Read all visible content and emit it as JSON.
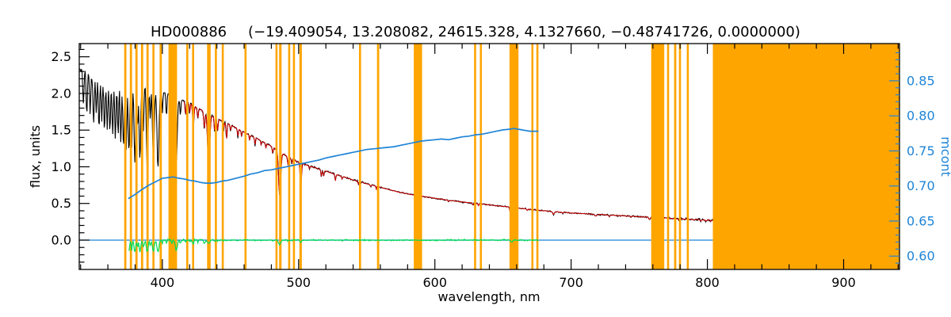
{
  "chart_data": {
    "type": "line",
    "title_object": "HD000886",
    "title_params": "(−19.409054, 13.208082, 24615.328, 4.1327660, −0.48741726, 0.0000000)",
    "xlabel": "wavelength, nm",
    "ylabel_left": "flux, units",
    "ylabel_right": "mcont",
    "xlim": [
      339,
      941
    ],
    "ylim_left": [
      -0.4,
      2.68
    ],
    "ylim_right": [
      0.581,
      0.903
    ],
    "x_ticks_major": [
      400,
      500,
      600,
      700,
      800,
      900
    ],
    "x_tick_minor_step": 20,
    "y_ticks_left": [
      0.0,
      0.5,
      1.0,
      1.5,
      2.0,
      2.5
    ],
    "y_ticks_right": [
      0.6,
      0.65,
      0.7,
      0.75,
      0.8,
      0.85
    ],
    "colors": {
      "frame": "#000000",
      "observed": "#000000",
      "fit": "#d40000",
      "mask": "#ffa500",
      "residual": "#00dd55",
      "mcont": "#1f84d6",
      "zero_line": "#1f84d6",
      "background": "#ffffff"
    },
    "masked_regions_nm": [
      [
        372.0,
        373.6
      ],
      [
        376.1,
        377.7
      ],
      [
        380.2,
        381.8
      ],
      [
        384.3,
        385.9
      ],
      [
        388.3,
        389.9
      ],
      [
        392.7,
        394.2
      ],
      [
        398.0,
        399.6
      ],
      [
        404.5,
        410.8
      ],
      [
        417.5,
        419.0
      ],
      [
        421.8,
        423.3
      ],
      [
        432.8,
        435.4
      ],
      [
        438.5,
        440.0
      ],
      [
        443.6,
        445.1
      ],
      [
        460.3,
        461.8
      ],
      [
        483.0,
        484.5
      ],
      [
        485.7,
        487.5
      ],
      [
        492.3,
        493.8
      ],
      [
        495.8,
        497.3
      ],
      [
        500.6,
        502.4
      ],
      [
        544.3,
        545.8
      ],
      [
        557.5,
        559.1
      ],
      [
        584.5,
        590.6
      ],
      [
        628.8,
        630.3
      ],
      [
        633.0,
        634.5
      ],
      [
        654.8,
        661.4
      ],
      [
        670.8,
        672.3
      ],
      [
        674.5,
        676.0
      ],
      [
        758.8,
        768.4
      ],
      [
        770.4,
        771.9
      ],
      [
        775.6,
        777.2
      ],
      [
        779.1,
        780.6
      ],
      [
        784.9,
        786.4
      ],
      [
        804.0,
        941.0
      ]
    ],
    "observed_spectrum": {
      "range_nm": [
        339.3,
        805.0
      ],
      "continuum": [
        [
          340,
          2.35
        ],
        [
          348,
          2.22
        ],
        [
          356,
          2.12
        ],
        [
          364,
          2.1
        ],
        [
          372,
          2.12
        ],
        [
          380,
          2.15
        ],
        [
          390,
          2.12
        ],
        [
          400,
          2.02
        ],
        [
          410,
          1.95
        ],
        [
          420,
          1.86
        ],
        [
          430,
          1.76
        ],
        [
          440,
          1.66
        ],
        [
          450,
          1.57
        ],
        [
          460,
          1.47
        ],
        [
          470,
          1.38
        ],
        [
          480,
          1.28
        ],
        [
          490,
          1.16
        ],
        [
          500,
          1.06
        ],
        [
          510,
          1.0
        ],
        [
          520,
          0.94
        ],
        [
          530,
          0.88
        ],
        [
          540,
          0.82
        ],
        [
          550,
          0.77
        ],
        [
          560,
          0.72
        ],
        [
          570,
          0.67
        ],
        [
          580,
          0.63
        ],
        [
          590,
          0.6
        ],
        [
          600,
          0.57
        ],
        [
          620,
          0.52
        ],
        [
          640,
          0.48
        ],
        [
          660,
          0.44
        ],
        [
          680,
          0.4
        ],
        [
          700,
          0.37
        ],
        [
          720,
          0.35
        ],
        [
          740,
          0.33
        ],
        [
          760,
          0.31
        ],
        [
          780,
          0.29
        ],
        [
          805,
          0.27
        ]
      ],
      "absorption_lines": [
        [
          342,
          0.2,
          0.6
        ],
        [
          344.5,
          0.25,
          0.6
        ],
        [
          347,
          0.22,
          0.6
        ],
        [
          349.5,
          0.28,
          0.6
        ],
        [
          351.5,
          0.22,
          0.5
        ],
        [
          353.5,
          0.3,
          0.6
        ],
        [
          355.5,
          0.25,
          0.5
        ],
        [
          357.5,
          0.3,
          0.6
        ],
        [
          359.5,
          0.28,
          0.6
        ],
        [
          361.5,
          0.3,
          0.6
        ],
        [
          363.5,
          0.32,
          0.6
        ],
        [
          365.5,
          0.35,
          0.6
        ],
        [
          367.5,
          0.33,
          0.6
        ],
        [
          369.5,
          0.38,
          0.6
        ],
        [
          371.5,
          0.4,
          0.7
        ],
        [
          373.5,
          0.42,
          0.6
        ],
        [
          375.5,
          0.45,
          0.7
        ],
        [
          377.5,
          0.42,
          0.6
        ],
        [
          379.8,
          0.5,
          0.8
        ],
        [
          381.8,
          0.3,
          0.5
        ],
        [
          383.5,
          0.5,
          0.8
        ],
        [
          386.0,
          0.32,
          0.6
        ],
        [
          388.9,
          0.54,
          0.9
        ],
        [
          391.2,
          0.22,
          0.5
        ],
        [
          393.4,
          0.48,
          0.9
        ],
        [
          396.8,
          0.52,
          1.0
        ],
        [
          400.0,
          0.14,
          0.5
        ],
        [
          403.0,
          0.16,
          0.5
        ],
        [
          407.0,
          0.14,
          0.5
        ],
        [
          410.2,
          0.46,
          1.0
        ],
        [
          413.2,
          0.12,
          0.5
        ],
        [
          417.0,
          0.1,
          0.5
        ],
        [
          420.0,
          0.08,
          0.4
        ],
        [
          422.7,
          0.18,
          0.6
        ],
        [
          426.0,
          0.08,
          0.5
        ],
        [
          430.8,
          0.14,
          0.6
        ],
        [
          434.0,
          0.42,
          1.1
        ],
        [
          438.4,
          0.12,
          0.5
        ],
        [
          440.5,
          0.1,
          0.5
        ],
        [
          445.0,
          0.08,
          0.4
        ],
        [
          447.1,
          0.14,
          0.5
        ],
        [
          450.0,
          0.06,
          0.4
        ],
        [
          455.4,
          0.08,
          0.4
        ],
        [
          458.2,
          0.06,
          0.4
        ],
        [
          464.0,
          0.05,
          0.4
        ],
        [
          468.0,
          0.08,
          0.4
        ],
        [
          472.5,
          0.05,
          0.4
        ],
        [
          476.0,
          0.05,
          0.4
        ],
        [
          481.0,
          0.07,
          0.5
        ],
        [
          486.1,
          0.5,
          1.1
        ],
        [
          492.2,
          0.1,
          0.5
        ],
        [
          495.0,
          0.06,
          0.4
        ],
        [
          501.6,
          0.3,
          0.7
        ],
        [
          508.0,
          0.05,
          0.4
        ],
        [
          516.7,
          0.1,
          0.5
        ],
        [
          518.4,
          0.08,
          0.5
        ],
        [
          527.0,
          0.1,
          0.5
        ],
        [
          532.0,
          0.05,
          0.4
        ],
        [
          544.0,
          0.06,
          0.4
        ],
        [
          553.0,
          0.04,
          0.4
        ],
        [
          557.0,
          0.05,
          0.4
        ],
        [
          587.6,
          0.12,
          0.6
        ],
        [
          589.3,
          0.15,
          0.6
        ],
        [
          610.0,
          0.04,
          0.4
        ],
        [
          628.0,
          0.06,
          0.4
        ],
        [
          632.0,
          0.05,
          0.4
        ],
        [
          656.3,
          0.48,
          1.0
        ],
        [
          667.8,
          0.06,
          0.4
        ],
        [
          671.6,
          0.08,
          0.4
        ],
        [
          687.0,
          0.1,
          0.8
        ],
        [
          694.0,
          0.04,
          0.4
        ],
        [
          718.0,
          0.07,
          1.0
        ],
        [
          728.0,
          0.05,
          0.8
        ],
        [
          744.0,
          0.05,
          0.4
        ],
        [
          757.5,
          0.1,
          0.8
        ],
        [
          760.8,
          0.14,
          1.0
        ],
        [
          779.0,
          0.05,
          0.5
        ],
        [
          790.0,
          0.05,
          0.4
        ],
        [
          795.0,
          0.07,
          0.5
        ],
        [
          799.0,
          0.08,
          0.4
        ],
        [
          802.5,
          0.07,
          0.4
        ]
      ]
    },
    "fit_spectrum": {
      "range_nm": [
        416.0,
        805.0
      ]
    },
    "mcont_curve": {
      "axis": "right",
      "points": [
        [
          375,
          0.682
        ],
        [
          380,
          0.688
        ],
        [
          385,
          0.695
        ],
        [
          390,
          0.701
        ],
        [
          395,
          0.706
        ],
        [
          400,
          0.711
        ],
        [
          404,
          0.712
        ],
        [
          408,
          0.713
        ],
        [
          412,
          0.711
        ],
        [
          416,
          0.71
        ],
        [
          420,
          0.708
        ],
        [
          424,
          0.707
        ],
        [
          428,
          0.705
        ],
        [
          432,
          0.704
        ],
        [
          436,
          0.704
        ],
        [
          440,
          0.705
        ],
        [
          444,
          0.707
        ],
        [
          448,
          0.708
        ],
        [
          452,
          0.71
        ],
        [
          456,
          0.712
        ],
        [
          460,
          0.714
        ],
        [
          465,
          0.717
        ],
        [
          470,
          0.719
        ],
        [
          475,
          0.722
        ],
        [
          480,
          0.723
        ],
        [
          485,
          0.725
        ],
        [
          490,
          0.727
        ],
        [
          495,
          0.729
        ],
        [
          500,
          0.731
        ],
        [
          505,
          0.733
        ],
        [
          510,
          0.735
        ],
        [
          515,
          0.737
        ],
        [
          520,
          0.74
        ],
        [
          525,
          0.742
        ],
        [
          530,
          0.744
        ],
        [
          535,
          0.746
        ],
        [
          540,
          0.748
        ],
        [
          545,
          0.75
        ],
        [
          550,
          0.752
        ],
        [
          555,
          0.753
        ],
        [
          560,
          0.754
        ],
        [
          565,
          0.755
        ],
        [
          570,
          0.756
        ],
        [
          575,
          0.758
        ],
        [
          580,
          0.76
        ],
        [
          585,
          0.762
        ],
        [
          590,
          0.764
        ],
        [
          595,
          0.765
        ],
        [
          600,
          0.766
        ],
        [
          605,
          0.767
        ],
        [
          610,
          0.766
        ],
        [
          615,
          0.768
        ],
        [
          620,
          0.77
        ],
        [
          625,
          0.771
        ],
        [
          630,
          0.773
        ],
        [
          635,
          0.774
        ],
        [
          640,
          0.776
        ],
        [
          645,
          0.778
        ],
        [
          650,
          0.78
        ],
        [
          655,
          0.781
        ],
        [
          658,
          0.782
        ],
        [
          661,
          0.781
        ],
        [
          664,
          0.78
        ],
        [
          667,
          0.779
        ],
        [
          670,
          0.778
        ],
        [
          673,
          0.778
        ],
        [
          676,
          0.778
        ]
      ]
    },
    "residual_curve": {
      "range_nm": [
        375.5,
        676.0
      ],
      "baseline": 0.0
    },
    "zero_line": {
      "y": 0.0
    }
  }
}
